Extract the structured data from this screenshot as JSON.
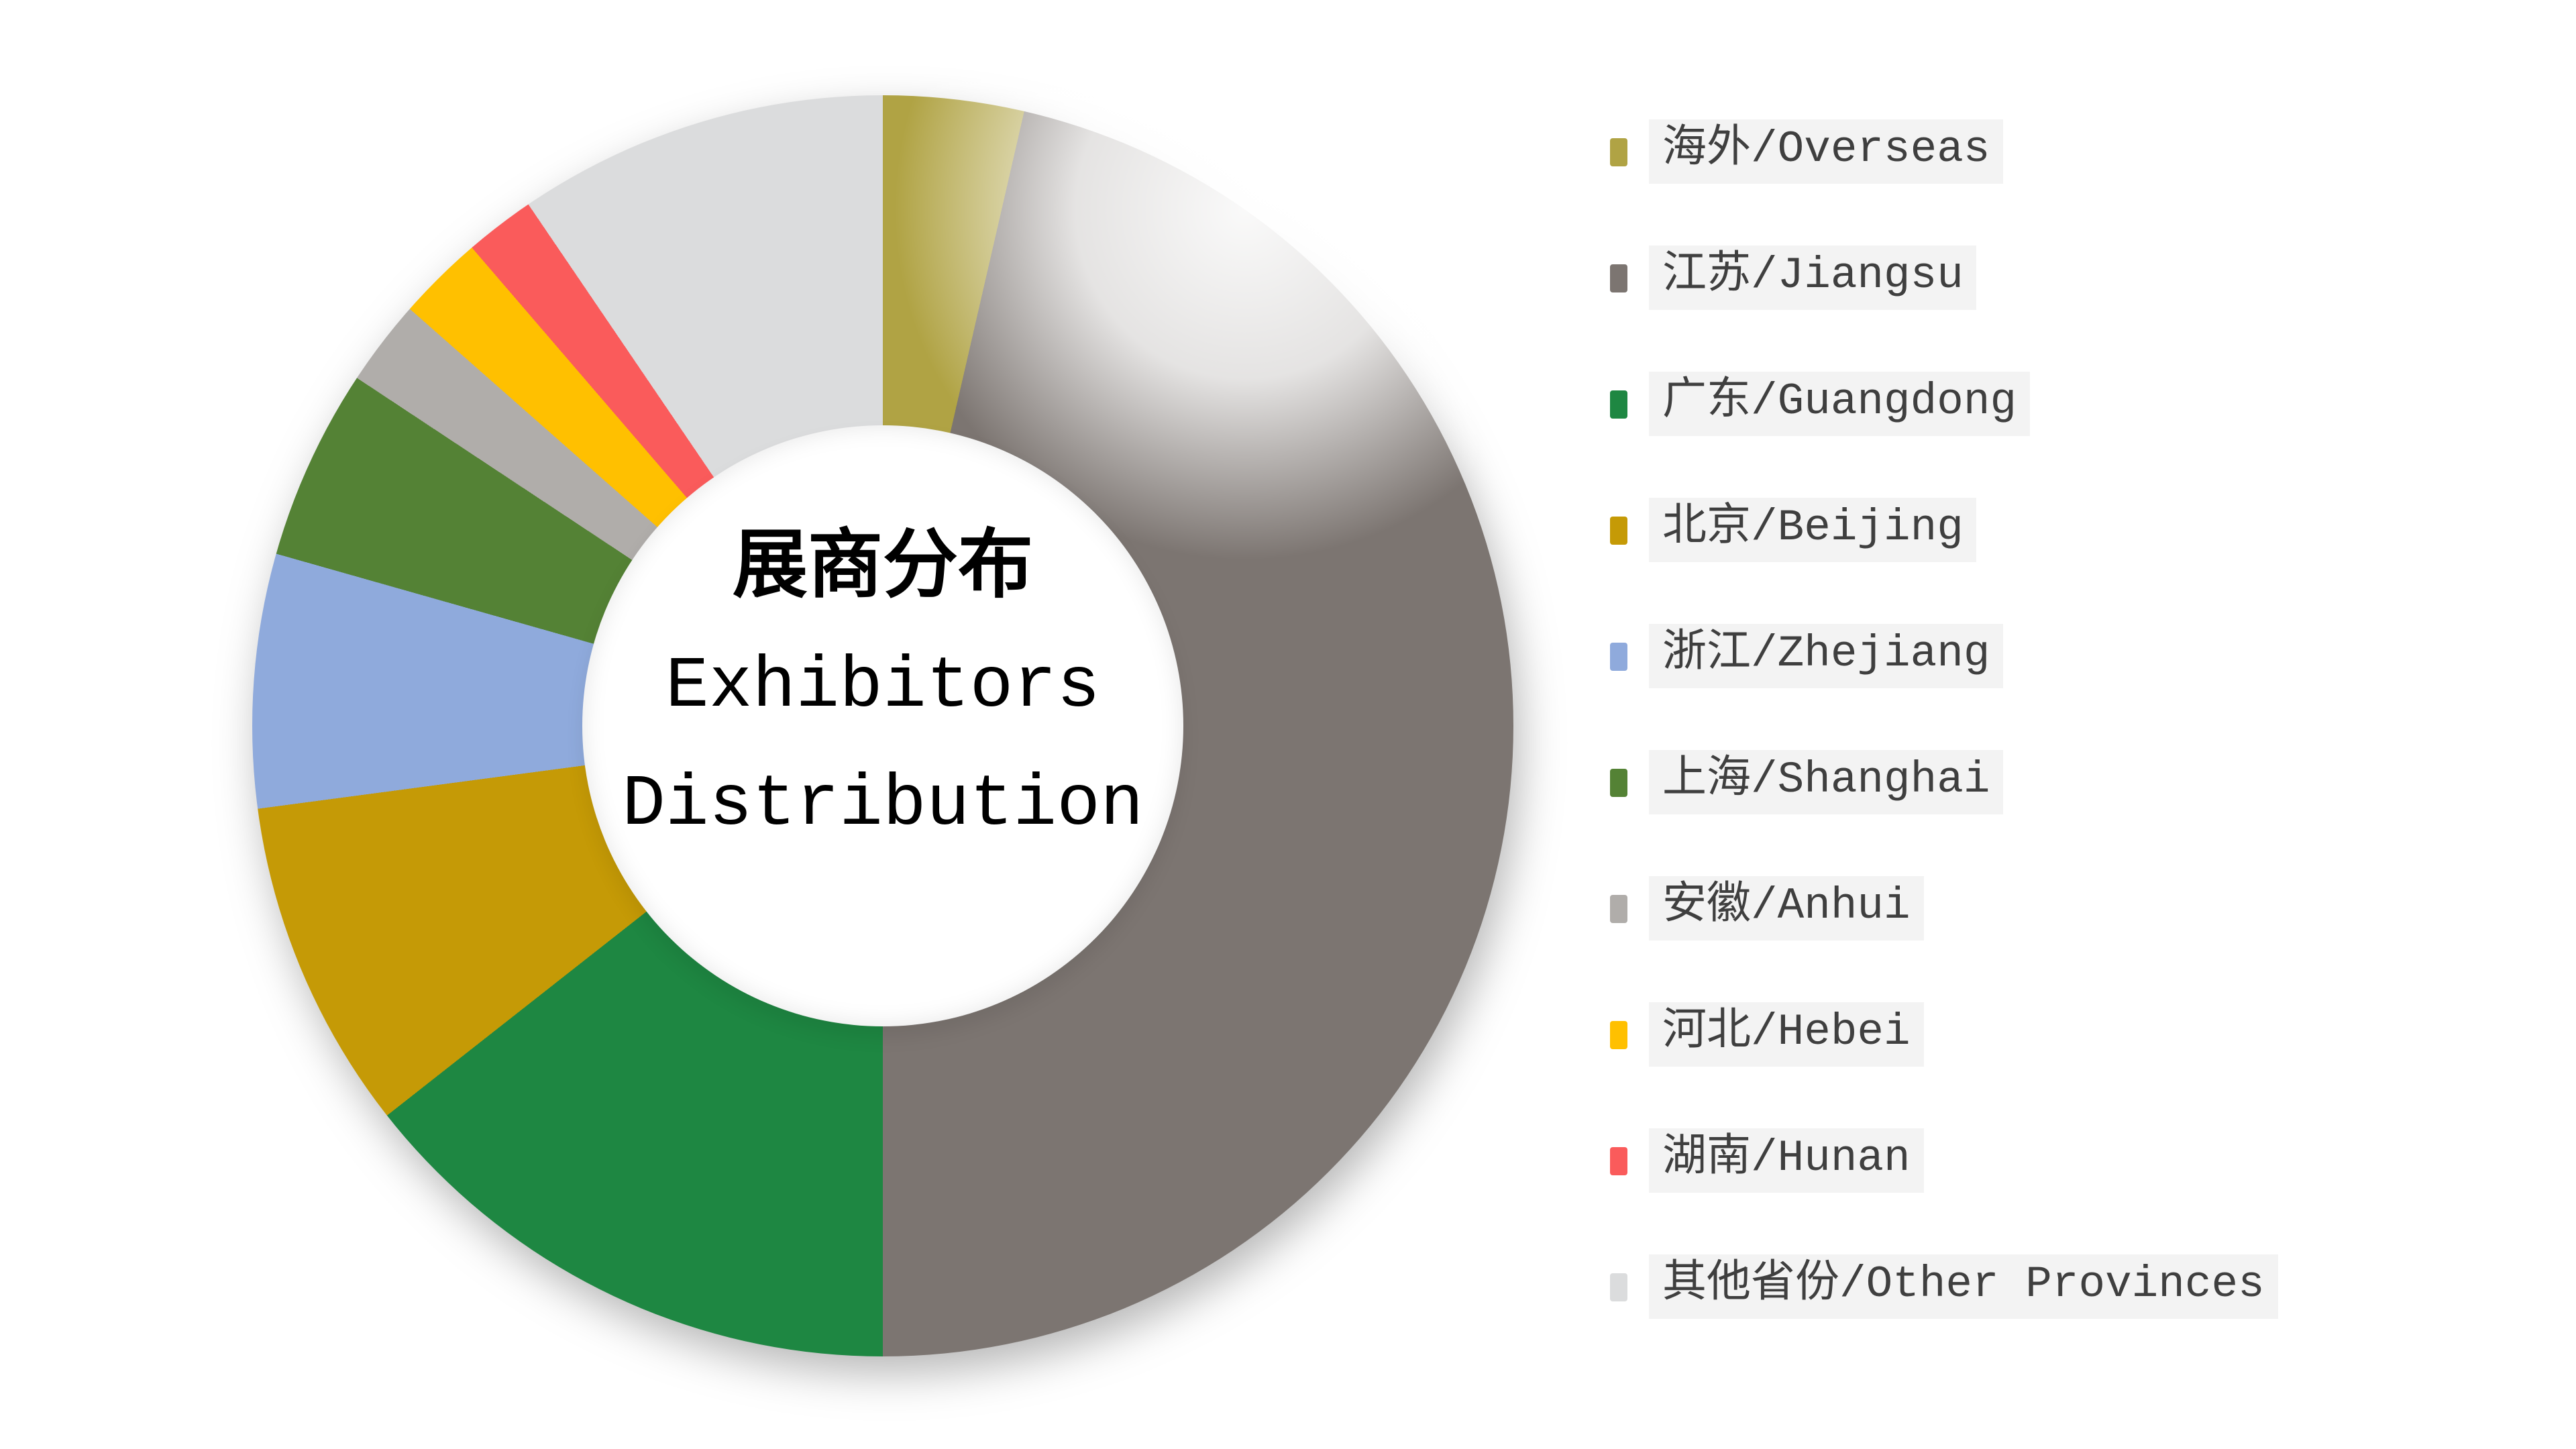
{
  "page": {
    "background_color": "#FFFFFF"
  },
  "chart_data": {
    "type": "pie",
    "variant": "donut",
    "title": "展商分布 Exhibitors Distribution",
    "title_lines": [
      "展商分布",
      "Exhibitors",
      "Distribution"
    ],
    "unit": "percent",
    "categories": [
      "海外/Overseas",
      "江苏/Jiangsu",
      "广东/Guangdong",
      "北京/Beijing",
      "浙江/Zhejiang",
      "上海/Shanghai",
      "安徽/Anhui",
      "河北/Hebei",
      "湖南/Hunan",
      "其他省份/Other Provinces"
    ],
    "values": [
      3.6,
      46.4,
      14.4,
      8.5,
      6.5,
      4.9,
      2.2,
      2.2,
      1.8,
      9.5
    ],
    "colors": [
      "#B0A344",
      "#7C7571",
      "#1E8742",
      "#C59A06",
      "#8FAADC",
      "#548235",
      "#B0ADAA",
      "#FFC000",
      "#FA5B5B",
      "#DBDCDD"
    ],
    "start_angle_deg": 0,
    "clockwise": true,
    "inner_radius_ratio": 0.477,
    "grid": false,
    "legend_position": "right",
    "legend_label_color": "#3F3F3F",
    "legend_label_background": "#F3F3F3",
    "title_color": "#000000"
  }
}
